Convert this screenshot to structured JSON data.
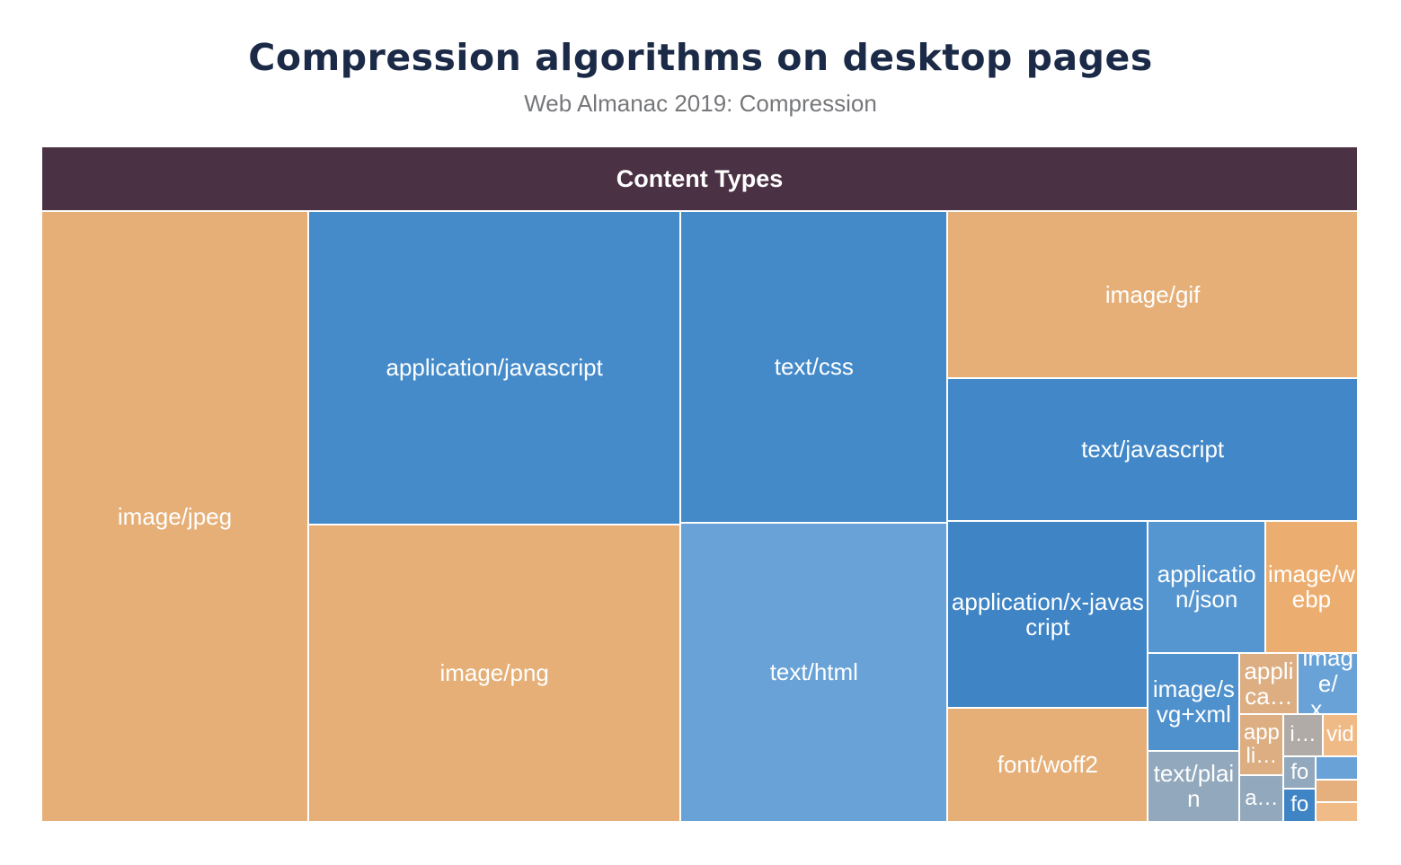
{
  "chart_data": {
    "type": "treemap",
    "title": "Compression algorithms on desktop pages",
    "subtitle": "Web Almanac 2019: Compression",
    "root_label": "Content Types",
    "items": [
      {
        "label": "image/jpeg",
        "value": 20.0,
        "color": "#e6af77"
      },
      {
        "label": "application/javascript",
        "value": 14.3,
        "color": "#468bc9"
      },
      {
        "label": "image/png",
        "value": 13.6,
        "color": "#e6af77"
      },
      {
        "label": "text/css",
        "value": 10.2,
        "color": "#458ac8"
      },
      {
        "label": "text/html",
        "value": 9.8,
        "color": "#68a2d7"
      },
      {
        "label": "image/gif",
        "value": 8.4,
        "color": "#e6af77"
      },
      {
        "label": "text/javascript",
        "value": 7.2,
        "color": "#4287c7"
      },
      {
        "label": "application/x-javascript",
        "value": 4.6,
        "color": "#3f85c6"
      },
      {
        "label": "font/woff2",
        "value": 2.8,
        "color": "#e6af77"
      },
      {
        "label": "application/json",
        "value": 1.9,
        "color": "#5596d0"
      },
      {
        "label": "image/webp",
        "value": 1.5,
        "color": "#ecae70"
      },
      {
        "label": "image/svg+xml",
        "value": 1.1,
        "color": "#4f91cd"
      },
      {
        "label": "text/plain",
        "value": 0.8,
        "color": "#92a8bc"
      },
      {
        "label": "applica…",
        "value": 0.44,
        "color": "#dcae82"
      },
      {
        "label": "image/x…",
        "value": 0.45,
        "color": "#68a2d7"
      },
      {
        "label": "appli…",
        "value": 0.33,
        "color": "#dcae82"
      },
      {
        "label": "a…",
        "value": 0.25,
        "color": "#92a8bc"
      },
      {
        "label": "i…",
        "value": 0.2,
        "color": "#b0aba6"
      },
      {
        "label": "vid",
        "value": 0.18,
        "color": "#efba86"
      },
      {
        "label": "fo",
        "value": 0.13,
        "color": "#92a8bc"
      },
      {
        "label": "fo",
        "value": 0.13,
        "color": "#3f85c6"
      },
      {
        "label": "",
        "value": 0.12,
        "color": "#68a2d7"
      },
      {
        "label": "",
        "value": 0.12,
        "color": "#e6b07e"
      },
      {
        "label": "",
        "value": 0.1,
        "color": "#f0bb86"
      }
    ]
  }
}
